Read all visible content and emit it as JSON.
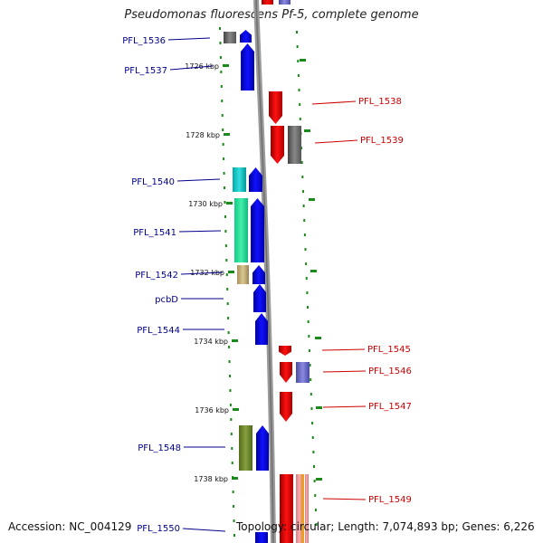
{
  "title": "Pseudomonas fluorescens Pf-5, complete genome",
  "footer": {
    "accession": "Accession: NC_004129",
    "topology": "Topology: circular; Length: 7,074,893 bp; Genes: 6,226"
  },
  "colors": {
    "forward_strand": "#0000ee",
    "reverse_strand": "#ee0000",
    "backbone": "#888888",
    "tick": "#1a8a1a",
    "label_forward": "#00008b",
    "label_reverse": "#cc0000"
  },
  "kbp_ticks": [
    "1726 kbp",
    "1728 kbp",
    "1730 kbp",
    "1732 kbp",
    "1734 kbp",
    "1736 kbp",
    "1738 kbp"
  ],
  "genes": [
    {
      "name": "PFL_1536",
      "strand": "forward"
    },
    {
      "name": "PFL_1537",
      "strand": "forward"
    },
    {
      "name": "PFL_1538",
      "strand": "reverse"
    },
    {
      "name": "PFL_1539",
      "strand": "reverse"
    },
    {
      "name": "PFL_1540",
      "strand": "forward"
    },
    {
      "name": "PFL_1541",
      "strand": "forward"
    },
    {
      "name": "PFL_1542",
      "strand": "forward"
    },
    {
      "name": "pcbD",
      "strand": "forward"
    },
    {
      "name": "PFL_1544",
      "strand": "forward"
    },
    {
      "name": "PFL_1545",
      "strand": "reverse"
    },
    {
      "name": "PFL_1546",
      "strand": "reverse"
    },
    {
      "name": "PFL_1547",
      "strand": "reverse"
    },
    {
      "name": "PFL_1548",
      "strand": "forward"
    },
    {
      "name": "PFL_1549",
      "strand": "reverse"
    },
    {
      "name": "PFL_1550",
      "strand": "forward"
    }
  ]
}
